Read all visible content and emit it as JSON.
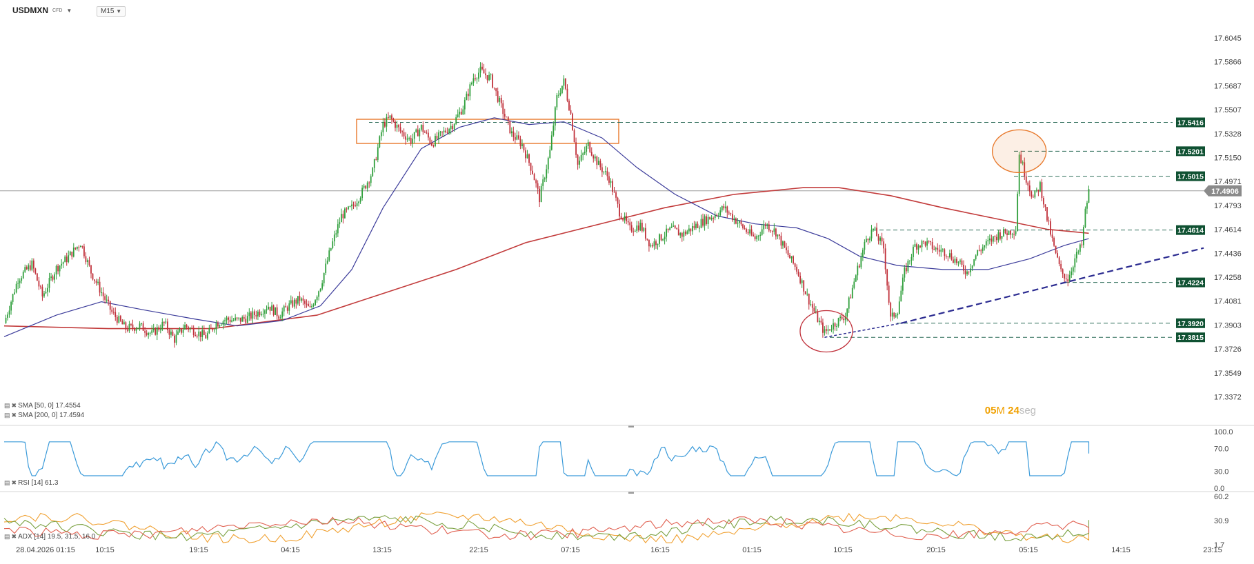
{
  "header": {
    "symbol": "USDMXN",
    "symbol_type": "CFD",
    "timeframe": "M15"
  },
  "indicators": {
    "sma50_label": "SMA [50, 0] 17.4554",
    "sma200_label": "SMA [200, 0] 17.4594",
    "rsi_label": "RSI [14] 61.3",
    "adx_label": "ADX [14] 19.5, 31.5, 16.0"
  },
  "countdown": {
    "min_value": "05",
    "min_unit": "M",
    "sec_value": "24",
    "sec_unit": "seg"
  },
  "colors": {
    "bull": "#2e9e3a",
    "bear": "#c0303a",
    "sma50": "#3b3b9a",
    "sma200": "#c23b3b",
    "rsi": "#3a9ad9",
    "adx_orange": "#f0a030",
    "adx_green": "#7aa040",
    "adx_red": "#e06050",
    "level_tag": "#0f5132",
    "level_line": "#2f6e5a",
    "trend_line": "#2b2b90",
    "highlight_orange": "#e8782a",
    "highlight_red": "#c0303a"
  },
  "chart_data": {
    "type": "candlestick",
    "symbol": "USDMXN",
    "timeframe": "M15",
    "price_axis": [
      "17.6045",
      "17.5866",
      "17.5687",
      "17.5507",
      "17.5328",
      "17.5150",
      "17.4971",
      "17.4793",
      "17.4614",
      "17.4436",
      "17.4258",
      "17.4081",
      "17.3903",
      "17.3726",
      "17.3549",
      "17.3372"
    ],
    "time_axis": [
      "28.04.2026 01:15",
      "10:15",
      "19:15",
      "04:15",
      "13:15",
      "22:15",
      "07:15",
      "16:15",
      "01:15",
      "10:15",
      "20:15",
      "05:15",
      "14:15",
      "23:15"
    ],
    "current_price": "17.4906",
    "levels": [
      "17.5416",
      "17.5201",
      "17.5015",
      "17.4614",
      "17.4224",
      "17.3920",
      "17.3815"
    ],
    "close_path": [
      {
        "t": 0,
        "p": 17.392
      },
      {
        "t": 8,
        "p": 17.425
      },
      {
        "t": 16,
        "p": 17.436
      },
      {
        "t": 22,
        "p": 17.412
      },
      {
        "t": 30,
        "p": 17.433
      },
      {
        "t": 36,
        "p": 17.44
      },
      {
        "t": 44,
        "p": 17.452
      },
      {
        "t": 50,
        "p": 17.43
      },
      {
        "t": 56,
        "p": 17.415
      },
      {
        "t": 62,
        "p": 17.4
      },
      {
        "t": 70,
        "p": 17.388
      },
      {
        "t": 78,
        "p": 17.39
      },
      {
        "t": 85,
        "p": 17.384
      },
      {
        "t": 92,
        "p": 17.392
      },
      {
        "t": 98,
        "p": 17.38
      },
      {
        "t": 104,
        "p": 17.39
      },
      {
        "t": 110,
        "p": 17.386
      },
      {
        "t": 116,
        "p": 17.382
      },
      {
        "t": 122,
        "p": 17.392
      },
      {
        "t": 128,
        "p": 17.395
      },
      {
        "t": 134,
        "p": 17.394
      },
      {
        "t": 140,
        "p": 17.396
      },
      {
        "t": 146,
        "p": 17.4
      },
      {
        "t": 152,
        "p": 17.405
      },
      {
        "t": 158,
        "p": 17.398
      },
      {
        "t": 164,
        "p": 17.405
      },
      {
        "t": 170,
        "p": 17.41
      },
      {
        "t": 176,
        "p": 17.402
      },
      {
        "t": 182,
        "p": 17.42
      },
      {
        "t": 188,
        "p": 17.448
      },
      {
        "t": 194,
        "p": 17.472
      },
      {
        "t": 200,
        "p": 17.478
      },
      {
        "t": 206,
        "p": 17.49
      },
      {
        "t": 212,
        "p": 17.505
      },
      {
        "t": 218,
        "p": 17.54
      },
      {
        "t": 222,
        "p": 17.545
      },
      {
        "t": 228,
        "p": 17.535
      },
      {
        "t": 234,
        "p": 17.528
      },
      {
        "t": 240,
        "p": 17.538
      },
      {
        "t": 246,
        "p": 17.526
      },
      {
        "t": 252,
        "p": 17.533
      },
      {
        "t": 258,
        "p": 17.54
      },
      {
        "t": 264,
        "p": 17.553
      },
      {
        "t": 270,
        "p": 17.575
      },
      {
        "t": 274,
        "p": 17.58
      },
      {
        "t": 280,
        "p": 17.574
      },
      {
        "t": 286,
        "p": 17.553
      },
      {
        "t": 292,
        "p": 17.533
      },
      {
        "t": 298,
        "p": 17.525
      },
      {
        "t": 304,
        "p": 17.505
      },
      {
        "t": 308,
        "p": 17.485
      },
      {
        "t": 314,
        "p": 17.52
      },
      {
        "t": 318,
        "p": 17.56
      },
      {
        "t": 322,
        "p": 17.572
      },
      {
        "t": 326,
        "p": 17.548
      },
      {
        "t": 330,
        "p": 17.51
      },
      {
        "t": 336,
        "p": 17.525
      },
      {
        "t": 342,
        "p": 17.51
      },
      {
        "t": 348,
        "p": 17.5
      },
      {
        "t": 354,
        "p": 17.475
      },
      {
        "t": 360,
        "p": 17.462
      },
      {
        "t": 366,
        "p": 17.465
      },
      {
        "t": 372,
        "p": 17.45
      },
      {
        "t": 378,
        "p": 17.456
      },
      {
        "t": 384,
        "p": 17.462
      },
      {
        "t": 390,
        "p": 17.458
      },
      {
        "t": 396,
        "p": 17.463
      },
      {
        "t": 402,
        "p": 17.468
      },
      {
        "t": 408,
        "p": 17.472
      },
      {
        "t": 414,
        "p": 17.478
      },
      {
        "t": 420,
        "p": 17.47
      },
      {
        "t": 426,
        "p": 17.462
      },
      {
        "t": 432,
        "p": 17.455
      },
      {
        "t": 438,
        "p": 17.466
      },
      {
        "t": 444,
        "p": 17.46
      },
      {
        "t": 450,
        "p": 17.445
      },
      {
        "t": 456,
        "p": 17.432
      },
      {
        "t": 462,
        "p": 17.412
      },
      {
        "t": 468,
        "p": 17.395
      },
      {
        "t": 472,
        "p": 17.385
      },
      {
        "t": 478,
        "p": 17.392
      },
      {
        "t": 484,
        "p": 17.398
      },
      {
        "t": 490,
        "p": 17.428
      },
      {
        "t": 496,
        "p": 17.455
      },
      {
        "t": 500,
        "p": 17.462
      },
      {
        "t": 506,
        "p": 17.448
      },
      {
        "t": 510,
        "p": 17.395
      },
      {
        "t": 514,
        "p": 17.402
      },
      {
        "t": 518,
        "p": 17.43
      },
      {
        "t": 524,
        "p": 17.45
      },
      {
        "t": 530,
        "p": 17.452
      },
      {
        "t": 536,
        "p": 17.447
      },
      {
        "t": 542,
        "p": 17.445
      },
      {
        "t": 548,
        "p": 17.438
      },
      {
        "t": 554,
        "p": 17.43
      },
      {
        "t": 560,
        "p": 17.445
      },
      {
        "t": 566,
        "p": 17.452
      },
      {
        "t": 572,
        "p": 17.458
      },
      {
        "t": 578,
        "p": 17.46
      },
      {
        "t": 582,
        "p": 17.462
      },
      {
        "t": 584,
        "p": 17.518
      },
      {
        "t": 588,
        "p": 17.5
      },
      {
        "t": 592,
        "p": 17.485
      },
      {
        "t": 596,
        "p": 17.495
      },
      {
        "t": 600,
        "p": 17.47
      },
      {
        "t": 604,
        "p": 17.448
      },
      {
        "t": 608,
        "p": 17.43
      },
      {
        "t": 612,
        "p": 17.425
      },
      {
        "t": 616,
        "p": 17.44
      },
      {
        "t": 620,
        "p": 17.45
      },
      {
        "t": 622,
        "p": 17.475
      },
      {
        "t": 624,
        "p": 17.49
      }
    ],
    "sma50_path": [
      {
        "t": 0,
        "p": 17.382
      },
      {
        "t": 30,
        "p": 17.398
      },
      {
        "t": 56,
        "p": 17.408
      },
      {
        "t": 80,
        "p": 17.402
      },
      {
        "t": 110,
        "p": 17.395
      },
      {
        "t": 134,
        "p": 17.39
      },
      {
        "t": 160,
        "p": 17.394
      },
      {
        "t": 182,
        "p": 17.405
      },
      {
        "t": 200,
        "p": 17.432
      },
      {
        "t": 218,
        "p": 17.478
      },
      {
        "t": 240,
        "p": 17.522
      },
      {
        "t": 262,
        "p": 17.538
      },
      {
        "t": 282,
        "p": 17.545
      },
      {
        "t": 302,
        "p": 17.54
      },
      {
        "t": 322,
        "p": 17.542
      },
      {
        "t": 344,
        "p": 17.53
      },
      {
        "t": 364,
        "p": 17.508
      },
      {
        "t": 386,
        "p": 17.488
      },
      {
        "t": 410,
        "p": 17.472
      },
      {
        "t": 432,
        "p": 17.466
      },
      {
        "t": 456,
        "p": 17.463
      },
      {
        "t": 474,
        "p": 17.455
      },
      {
        "t": 492,
        "p": 17.442
      },
      {
        "t": 514,
        "p": 17.435
      },
      {
        "t": 540,
        "p": 17.432
      },
      {
        "t": 566,
        "p": 17.432
      },
      {
        "t": 590,
        "p": 17.44
      },
      {
        "t": 610,
        "p": 17.45
      },
      {
        "t": 624,
        "p": 17.455
      }
    ],
    "sma200_path": [
      {
        "t": 0,
        "p": 17.39
      },
      {
        "t": 60,
        "p": 17.388
      },
      {
        "t": 120,
        "p": 17.388
      },
      {
        "t": 180,
        "p": 17.398
      },
      {
        "t": 220,
        "p": 17.415
      },
      {
        "t": 260,
        "p": 17.432
      },
      {
        "t": 300,
        "p": 17.452
      },
      {
        "t": 340,
        "p": 17.465
      },
      {
        "t": 380,
        "p": 17.478
      },
      {
        "t": 420,
        "p": 17.488
      },
      {
        "t": 460,
        "p": 17.493
      },
      {
        "t": 480,
        "p": 17.493
      },
      {
        "t": 510,
        "p": 17.487
      },
      {
        "t": 540,
        "p": 17.478
      },
      {
        "t": 570,
        "p": 17.47
      },
      {
        "t": 600,
        "p": 17.462
      },
      {
        "t": 624,
        "p": 17.459
      }
    ],
    "rsi": {
      "range": [
        0,
        100
      ],
      "ticks": [
        "100.0",
        "70.0",
        "30.0",
        "0.0"
      ],
      "last": 61.3
    },
    "adx": {
      "ticks": [
        "60.2",
        "30.9",
        "1.7"
      ],
      "values": [
        19.5,
        31.5,
        16.0
      ]
    }
  }
}
